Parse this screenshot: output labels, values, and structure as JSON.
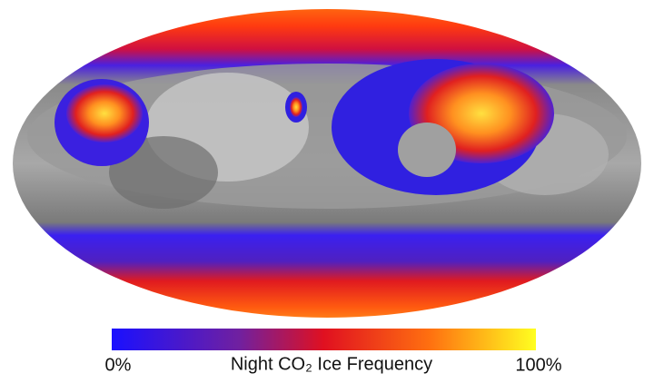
{
  "colorbar": {
    "min_label": "0%",
    "title": "Night CO₂ Ice Frequency",
    "max_label": "100%"
  }
}
